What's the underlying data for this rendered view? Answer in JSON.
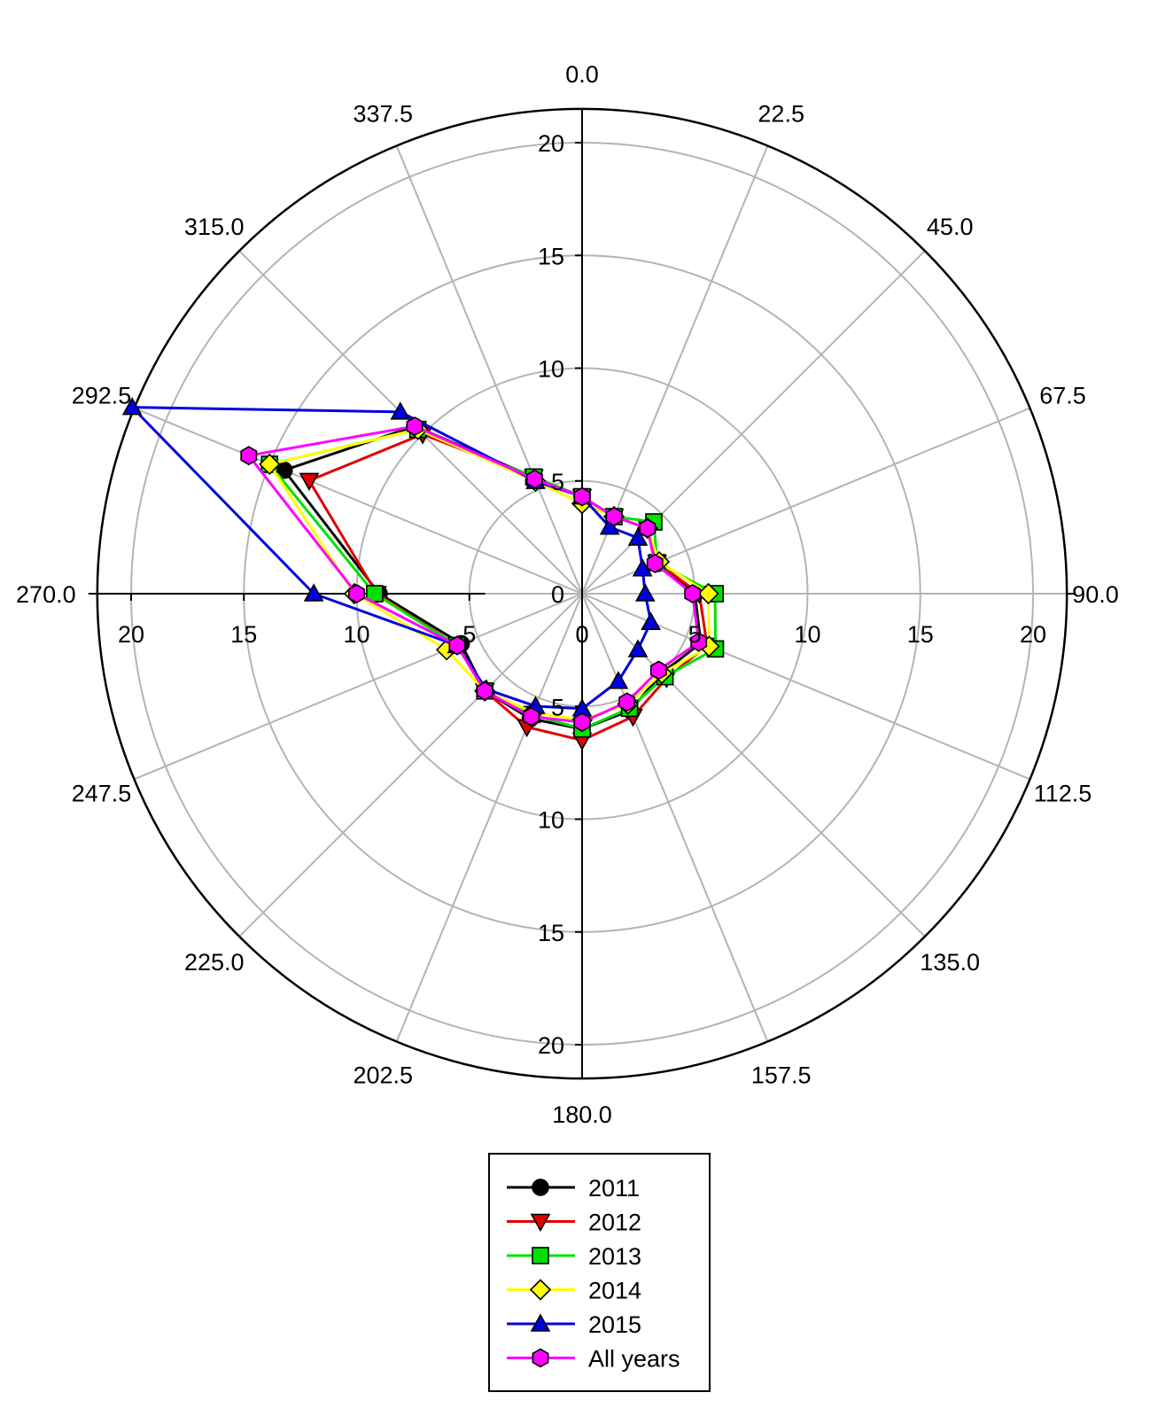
{
  "chart_data": {
    "type": "radar",
    "angles_deg": [
      0,
      22.5,
      45,
      67.5,
      90,
      112.5,
      135,
      157.5,
      180,
      202.5,
      225,
      247.5,
      270,
      292.5,
      315,
      337.5
    ],
    "angle_labels": [
      "0.0",
      "22.5",
      "45.0",
      "67.5",
      "90.0",
      "112.5",
      "135.0",
      "157.5",
      "180.0",
      "202.5",
      "225.0",
      "247.5",
      "270.0",
      "292.5",
      "315.0",
      "337.5"
    ],
    "radial_range": [
      0,
      21.5
    ],
    "radial_ticks": [
      0,
      5,
      10,
      15,
      20
    ],
    "radial_tick_labels": [
      "0",
      "5",
      "10",
      "15",
      "20"
    ],
    "grid": true,
    "legend_position": "bottom-center",
    "series": [
      {
        "name": "2011",
        "color": "#000000",
        "marker": "circle",
        "values": [
          4.3,
          3.7,
          4.1,
          3.6,
          5.0,
          5.7,
          5.0,
          5.6,
          6.0,
          6.0,
          6.1,
          5.8,
          9.0,
          14.3,
          10.5,
          5.6
        ]
      },
      {
        "name": "2012",
        "color": "#e00000",
        "marker": "triangle-down",
        "values": [
          4.3,
          3.7,
          4.1,
          3.6,
          5.2,
          6.0,
          5.3,
          5.9,
          6.5,
          6.4,
          6.1,
          6.0,
          9.1,
          13.1,
          10.0,
          5.6
        ]
      },
      {
        "name": "2013",
        "color": "#00e000",
        "marker": "square",
        "values": [
          4.3,
          3.7,
          4.5,
          3.6,
          5.9,
          6.4,
          5.2,
          5.5,
          6.0,
          5.8,
          6.1,
          6.0,
          9.2,
          15.0,
          10.3,
          5.6
        ]
      },
      {
        "name": "2014",
        "color": "#ffff00",
        "marker": "diamond",
        "values": [
          4.0,
          3.7,
          4.1,
          3.7,
          5.6,
          6.1,
          5.0,
          5.3,
          5.6,
          5.7,
          6.1,
          6.5,
          10.1,
          15.0,
          10.3,
          5.4
        ]
      },
      {
        "name": "2015",
        "color": "#0000e0",
        "marker": "triangle-up",
        "values": [
          4.3,
          3.2,
          3.5,
          2.9,
          2.8,
          3.3,
          3.5,
          4.2,
          5.1,
          5.4,
          6.0,
          6.0,
          11.9,
          21.6,
          11.4,
          5.4
        ]
      },
      {
        "name": "All years",
        "color": "#ff00ff",
        "marker": "hexagon",
        "values": [
          4.3,
          3.7,
          4.1,
          3.5,
          4.9,
          5.6,
          4.8,
          5.2,
          5.7,
          5.9,
          6.1,
          6.0,
          10.0,
          16.0,
          10.5,
          5.5
        ]
      }
    ]
  }
}
